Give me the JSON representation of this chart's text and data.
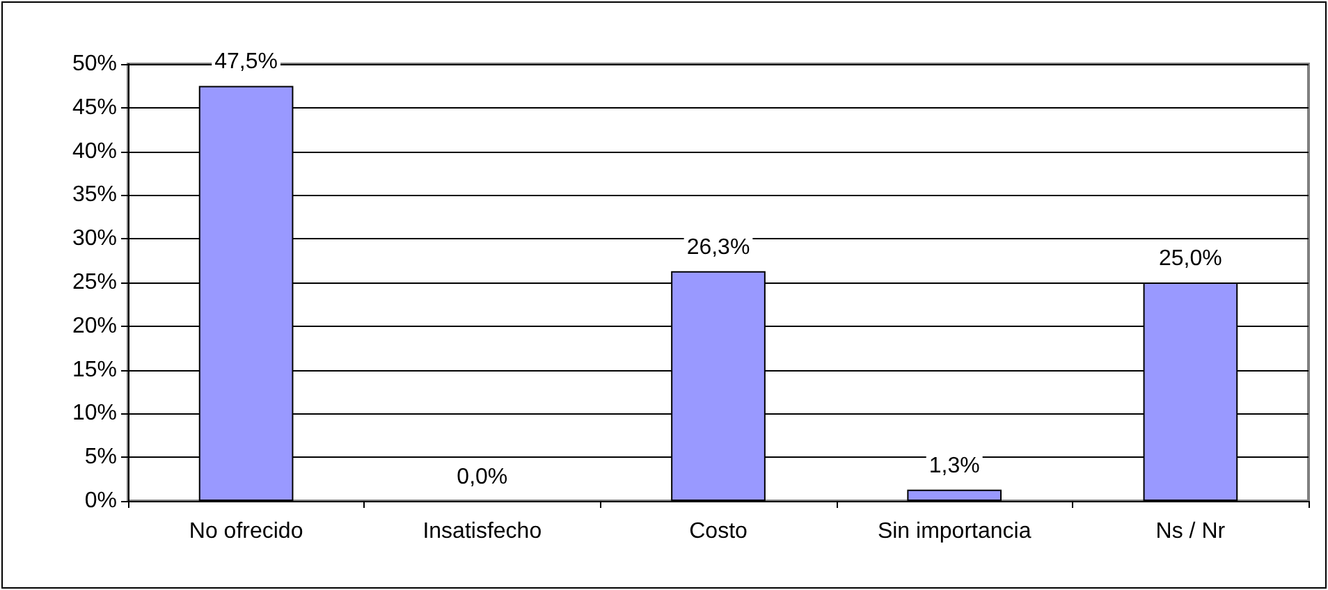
{
  "chart_data": {
    "type": "bar",
    "categories": [
      "No ofrecido",
      "Insatisfecho",
      "Costo",
      "Sin importancia",
      "Ns / Nr"
    ],
    "values": [
      47.5,
      0.0,
      26.3,
      1.3,
      25.0
    ],
    "value_labels": [
      "47,5%",
      "0,0%",
      "26,3%",
      "1,3%",
      "25,0%"
    ],
    "color": "#9999ff",
    "ylim": [
      0,
      50
    ],
    "yticks": [
      {
        "value": 0,
        "label": "0%"
      },
      {
        "value": 5,
        "label": "5%"
      },
      {
        "value": 10,
        "label": "10%"
      },
      {
        "value": 15,
        "label": "15%"
      },
      {
        "value": 20,
        "label": "20%"
      },
      {
        "value": 25,
        "label": "25%"
      },
      {
        "value": 30,
        "label": "30%"
      },
      {
        "value": 35,
        "label": "35%"
      },
      {
        "value": 40,
        "label": "40%"
      },
      {
        "value": 45,
        "label": "45%"
      },
      {
        "value": 50,
        "label": "50%"
      }
    ],
    "grid": "y"
  }
}
